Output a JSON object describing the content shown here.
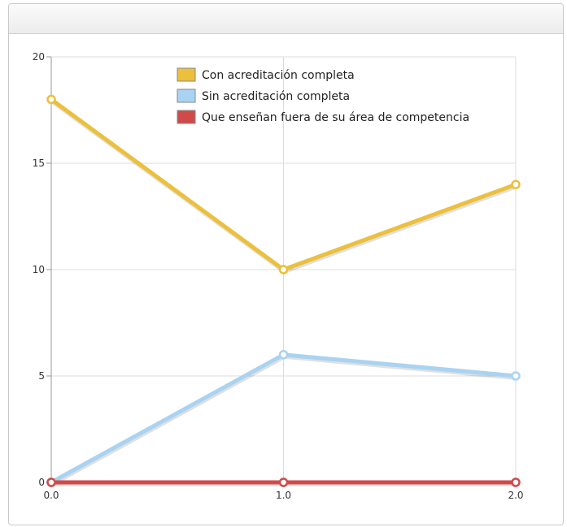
{
  "chart_data": {
    "type": "line",
    "x": [
      0.0,
      1.0,
      2.0
    ],
    "x_tick_labels": [
      "0.0",
      "1.0",
      "2.0"
    ],
    "y_tick_labels": [
      "0",
      "5",
      "10",
      "15",
      "20"
    ],
    "ylim": [
      0,
      20
    ],
    "xlim": [
      0,
      2
    ],
    "grid": true,
    "legend_position": "top-center",
    "series": [
      {
        "name": "Con acreditación completa",
        "values": [
          18,
          10,
          14
        ],
        "color": "#ecc03c"
      },
      {
        "name": "Sin acreditación completa",
        "values": [
          0,
          6,
          5
        ],
        "color": "#a9d3f2"
      },
      {
        "name": "Que enseñan fuera de su área de competencia",
        "values": [
          0,
          0,
          0
        ],
        "color": "#d04a4a"
      }
    ]
  }
}
